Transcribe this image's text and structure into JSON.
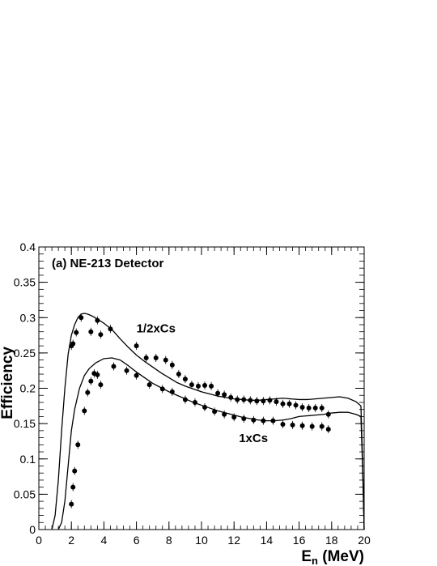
{
  "chart_data": {
    "type": "scatter",
    "panel_label": "(a) NE-213 Detector",
    "xlabel": {
      "base": "E",
      "sub": "n",
      "rest": " (MeV)"
    },
    "ylabel": "Efficiency",
    "xlim": [
      0,
      20
    ],
    "ylim": [
      0,
      0.4
    ],
    "x_ticks": [
      0,
      2,
      4,
      6,
      8,
      10,
      12,
      14,
      16,
      18,
      20
    ],
    "x_tick_labels": [
      "0",
      "2",
      "4",
      "6",
      "8",
      "10",
      "12",
      "14",
      "16",
      "18",
      "20"
    ],
    "y_ticks": [
      0,
      0.05,
      0.1,
      0.15,
      0.2,
      0.25,
      0.3,
      0.35,
      0.4
    ],
    "y_tick_labels": [
      "0",
      "0.05",
      "0.1",
      "0.15",
      "0.2",
      "0.25",
      "0.3",
      "0.35",
      "0.4"
    ],
    "grid": false,
    "colors": {
      "axes": "#000000",
      "data": "#000000",
      "background": "#ffffff"
    },
    "curve_annotations": [
      {
        "text": "1/2xCs",
        "x": 6.0,
        "y": 0.279
      },
      {
        "text": "1xCs",
        "x": 12.3,
        "y": 0.124
      }
    ],
    "series": [
      {
        "name": "1/2xCs",
        "kind": "line",
        "x": [
          0.8,
          1.0,
          1.2,
          1.4,
          1.6,
          1.8,
          2.0,
          2.2,
          2.4,
          2.6,
          2.8,
          3.0,
          3.3,
          3.6,
          4.0,
          4.5,
          5.0,
          5.5,
          6.0,
          6.5,
          7.0,
          7.5,
          8.0,
          8.5,
          9.0,
          9.5,
          10.0,
          10.5,
          11.0,
          11.5,
          12.0,
          12.5,
          13.0,
          13.5,
          14.0,
          14.5,
          15.0,
          15.5,
          16.0,
          16.5,
          17.0,
          17.5,
          18.0,
          18.5,
          19.0,
          19.5,
          19.8,
          19.9,
          20.0
        ],
        "y": [
          0.0,
          0.02,
          0.07,
          0.14,
          0.2,
          0.248,
          0.275,
          0.29,
          0.3,
          0.305,
          0.306,
          0.305,
          0.302,
          0.298,
          0.292,
          0.283,
          0.27,
          0.258,
          0.247,
          0.238,
          0.23,
          0.222,
          0.215,
          0.208,
          0.203,
          0.199,
          0.195,
          0.192,
          0.189,
          0.187,
          0.185,
          0.184,
          0.183,
          0.183,
          0.184,
          0.185,
          0.186,
          0.185,
          0.184,
          0.184,
          0.185,
          0.186,
          0.187,
          0.188,
          0.186,
          0.181,
          0.175,
          0.1,
          0.0
        ]
      },
      {
        "name": "1xCs",
        "kind": "line",
        "x": [
          1.2,
          1.4,
          1.6,
          1.8,
          2.0,
          2.2,
          2.5,
          2.8,
          3.1,
          3.5,
          4.0,
          4.5,
          5.0,
          5.5,
          6.0,
          6.5,
          7.0,
          7.5,
          8.0,
          8.5,
          9.0,
          9.5,
          10.0,
          10.5,
          11.0,
          11.5,
          12.0,
          12.5,
          13.0,
          13.5,
          14.0,
          14.5,
          15.0,
          15.5,
          16.0,
          16.5,
          17.0,
          17.5,
          18.0,
          18.5,
          19.0,
          19.5,
          19.8,
          19.9,
          20.0
        ],
        "y": [
          0.0,
          0.01,
          0.04,
          0.09,
          0.14,
          0.17,
          0.2,
          0.218,
          0.228,
          0.236,
          0.242,
          0.243,
          0.24,
          0.232,
          0.223,
          0.215,
          0.207,
          0.201,
          0.195,
          0.19,
          0.185,
          0.18,
          0.176,
          0.172,
          0.168,
          0.165,
          0.162,
          0.159,
          0.157,
          0.155,
          0.154,
          0.154,
          0.155,
          0.157,
          0.16,
          0.161,
          0.162,
          0.163,
          0.165,
          0.166,
          0.166,
          0.163,
          0.16,
          0.09,
          0.0
        ]
      },
      {
        "name": "1/2xCs data",
        "kind": "points",
        "x": [
          2.0,
          2.1,
          2.3,
          2.6,
          3.2,
          3.6,
          3.8,
          4.4,
          6.0,
          6.6,
          7.2,
          7.8,
          8.2,
          8.6,
          9.0,
          9.4,
          9.8,
          10.2,
          10.6,
          11.0,
          11.4,
          11.8,
          12.2,
          12.6,
          13.0,
          13.4,
          13.8,
          14.2,
          14.6,
          15.0,
          15.4,
          15.8,
          16.2,
          16.6,
          17.0,
          17.4,
          17.8
        ],
        "y": [
          0.26,
          0.263,
          0.279,
          0.3,
          0.28,
          0.296,
          0.276,
          0.284,
          0.26,
          0.243,
          0.243,
          0.24,
          0.233,
          0.22,
          0.213,
          0.205,
          0.203,
          0.204,
          0.203,
          0.193,
          0.191,
          0.187,
          0.184,
          0.184,
          0.183,
          0.182,
          0.182,
          0.183,
          0.181,
          0.178,
          0.178,
          0.176,
          0.173,
          0.172,
          0.172,
          0.172,
          0.163
        ]
      },
      {
        "name": "1xCs data",
        "kind": "points",
        "x": [
          2.0,
          2.1,
          2.2,
          2.4,
          2.8,
          3.0,
          3.2,
          3.4,
          3.6,
          3.8,
          4.6,
          5.4,
          6.0,
          6.8,
          7.6,
          8.2,
          9.0,
          9.6,
          10.2,
          10.8,
          11.4,
          12.0,
          12.6,
          13.2,
          13.8,
          14.4,
          15.0,
          15.6,
          16.2,
          16.8,
          17.4,
          17.8
        ],
        "y": [
          0.036,
          0.06,
          0.083,
          0.12,
          0.168,
          0.194,
          0.21,
          0.221,
          0.219,
          0.205,
          0.231,
          0.225,
          0.218,
          0.205,
          0.199,
          0.195,
          0.184,
          0.18,
          0.173,
          0.167,
          0.163,
          0.159,
          0.157,
          0.155,
          0.154,
          0.154,
          0.149,
          0.148,
          0.147,
          0.146,
          0.146,
          0.142
        ]
      }
    ]
  }
}
